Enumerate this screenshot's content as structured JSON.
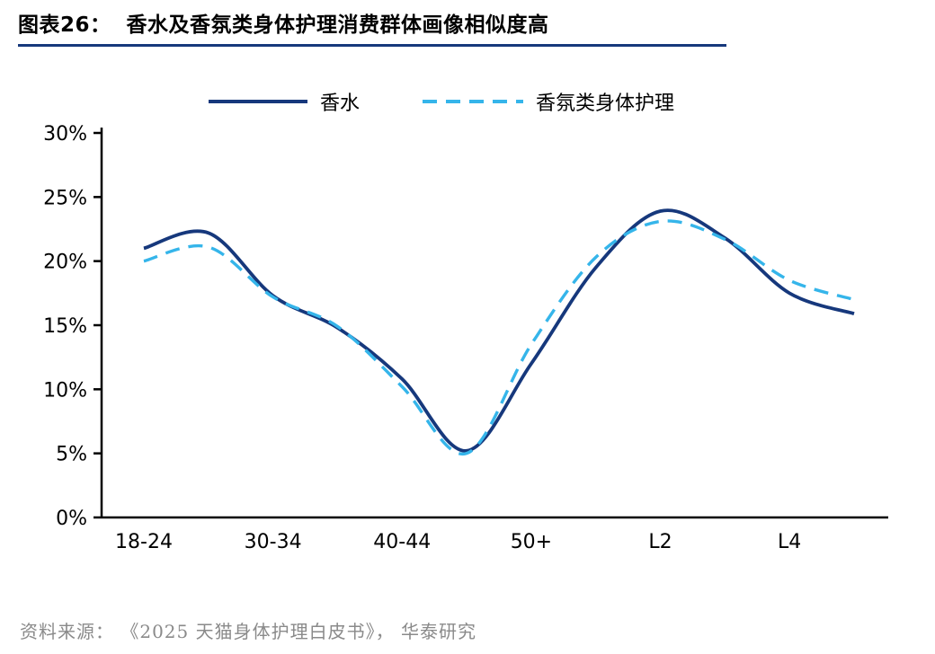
{
  "title": "图表26：  香水及香氛类身体护理消费群体画像相似度高",
  "source": "资料来源： 《2025 天猫身体护理白皮书》， 华泰研究",
  "colors": {
    "primary_navy": "#16387c",
    "secondary_lightblue": "#35b5ea",
    "axis": "#000000",
    "source_gray": "#8a8a8a"
  },
  "chart_data": {
    "type": "line",
    "title": "香水及香氛类身体护理消费群体画像相似度高",
    "categories": [
      "18-24",
      "",
      "30-34",
      "",
      "40-44",
      "",
      "50+",
      "",
      "L2",
      "",
      "L4",
      ""
    ],
    "series": [
      {
        "name": "香水",
        "style": "solid",
        "color": "#16387c",
        "values": [
          21.0,
          22.2,
          17.3,
          14.8,
          10.8,
          5.2,
          12.0,
          19.5,
          23.9,
          21.8,
          17.5,
          15.9
        ]
      },
      {
        "name": "香氛类身体护理",
        "style": "dashed",
        "color": "#35b5ea",
        "values": [
          20.0,
          21.1,
          17.2,
          14.9,
          10.2,
          5.0,
          13.5,
          20.3,
          23.1,
          21.7,
          18.5,
          17.0
        ]
      }
    ],
    "ylim": [
      0,
      30
    ],
    "y_ticks": [
      0,
      5,
      10,
      15,
      20,
      25,
      30
    ],
    "y_tick_format": "percent",
    "grid": "off",
    "legend_position": "top"
  }
}
